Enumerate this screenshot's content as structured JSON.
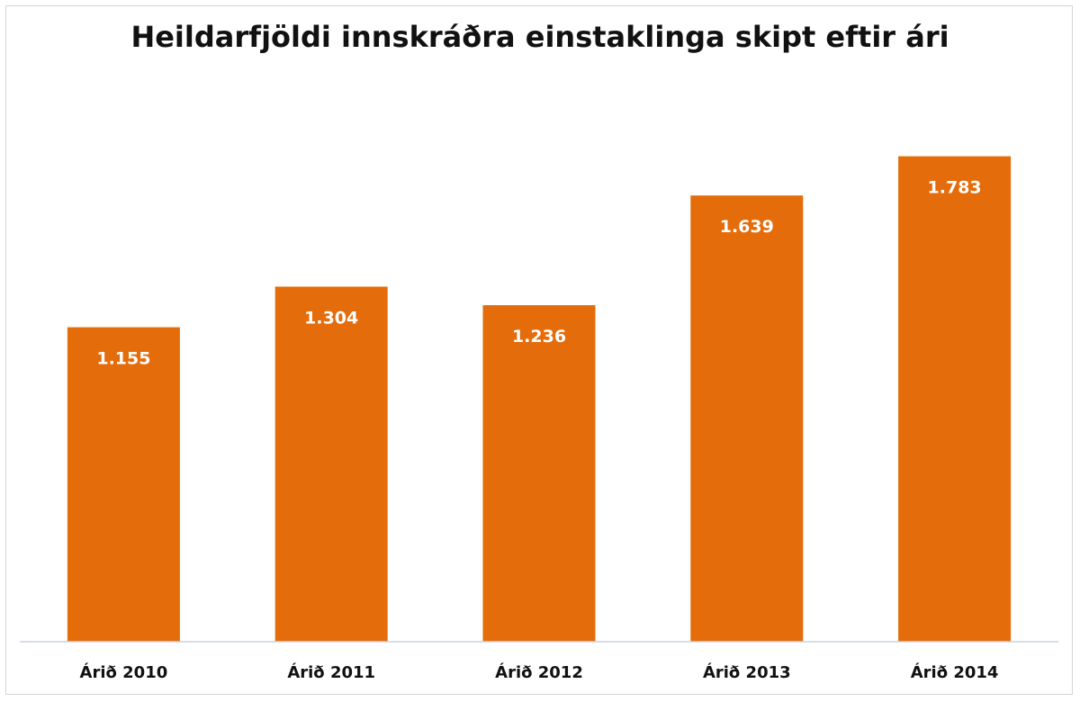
{
  "chart_data": {
    "type": "bar",
    "title": "Heildarfjöldi innskráðra einstaklinga skipt eftir ári",
    "categories": [
      "Árið 2010",
      "Árið 2011",
      "Árið 2012",
      "Árið 2013",
      "Árið 2014"
    ],
    "values": [
      1155,
      1304,
      1236,
      1639,
      1783
    ],
    "value_labels": [
      "1.155",
      "1.304",
      "1.236",
      "1.639",
      "1.783"
    ],
    "xlabel": "",
    "ylabel": "",
    "ylim": [
      0,
      2000
    ],
    "grid": false,
    "legend": "none",
    "bar_color": "#E46C0A",
    "label_color": "#FFFFFF"
  }
}
